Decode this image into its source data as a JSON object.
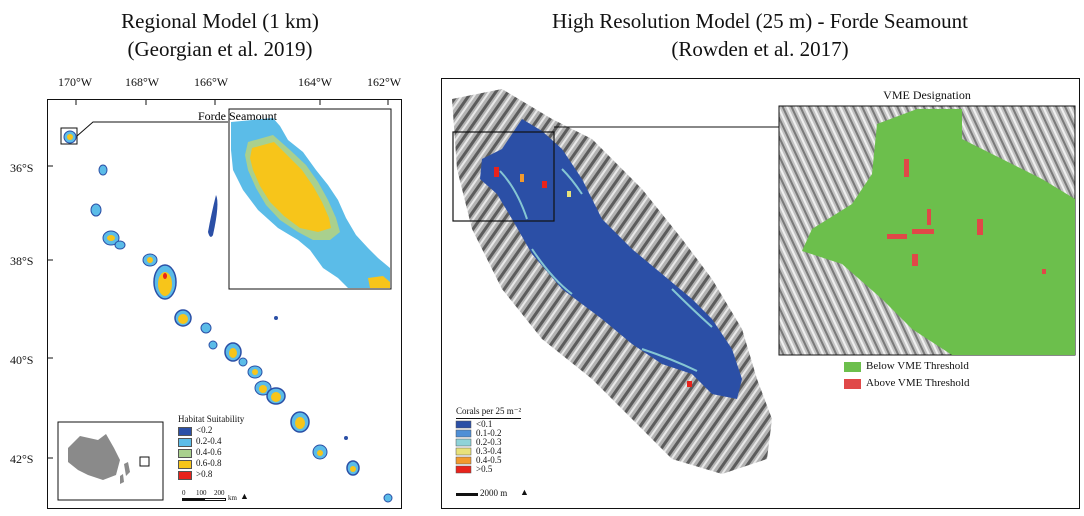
{
  "left_panel": {
    "title_line1": "Regional Model (1 km)",
    "title_line2": "(Georgian et al. 2019)",
    "lon_ticks": [
      "170°W",
      "168°W",
      "166°W",
      "164°W",
      "162°W"
    ],
    "lat_ticks": [
      "36°S",
      "38°S",
      "40°S",
      "42°S"
    ],
    "inset_label": "Forde Seamount",
    "legend": {
      "title": "Habitat Suitability",
      "items": [
        {
          "label": "<0.2",
          "color": "#2b4fa6"
        },
        {
          "label": "0.2-0.4",
          "color": "#5bbce8"
        },
        {
          "label": "0.4-0.6",
          "color": "#a9d08e"
        },
        {
          "label": "0.6-0.8",
          "color": "#f7c51a"
        },
        {
          "label": ">0.8",
          "color": "#e8231c"
        }
      ]
    },
    "scalebar": {
      "labels": [
        "0",
        "100",
        "200"
      ],
      "unit": "km"
    }
  },
  "right_panel": {
    "title_line1": "High Resolution Model (25 m) - Forde Seamount",
    "title_line2": "(Rowden et al. 2017)",
    "inset_title": "VME Designation",
    "vme_legend": [
      {
        "label": "Below VME Threshold",
        "color": "#6cbf4c"
      },
      {
        "label": "Above VME Threshold",
        "color": "#e04848"
      }
    ],
    "legend": {
      "title": "Corals per 25 m⁻²",
      "items": [
        {
          "label": "<0.1",
          "color": "#2b4fa6"
        },
        {
          "label": "0.1-0.2",
          "color": "#4f8fd6"
        },
        {
          "label": "0.2-0.3",
          "color": "#8fd3d8"
        },
        {
          "label": "0.3-0.4",
          "color": "#e8e27a"
        },
        {
          "label": "0.4-0.5",
          "color": "#f29a2e"
        },
        {
          "label": ">0.5",
          "color": "#e8231c"
        }
      ]
    },
    "scalebar": {
      "label": "2000 m"
    }
  },
  "colors": {
    "habitat_blue": "#2b4fa6",
    "light_blue": "#5bbce8",
    "yellow": "#f7c51a",
    "green": "#6cbf4c",
    "terrain_gray": "#9a9a9a"
  },
  "icons": [
    "north-arrow-icon"
  ]
}
